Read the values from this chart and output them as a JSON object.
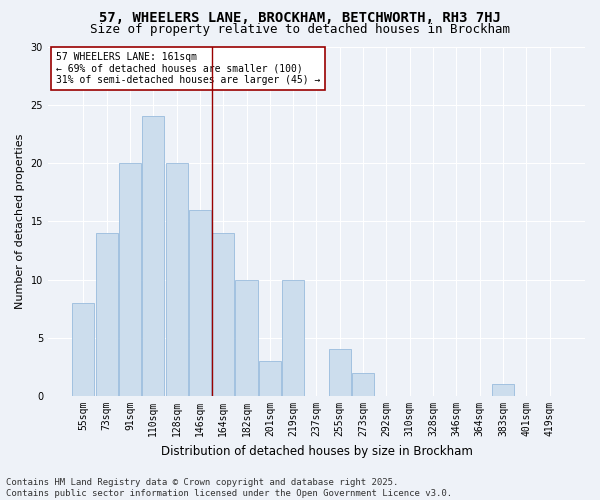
{
  "title": "57, WHEELERS LANE, BROCKHAM, BETCHWORTH, RH3 7HJ",
  "subtitle": "Size of property relative to detached houses in Brockham",
  "xlabel": "Distribution of detached houses by size in Brockham",
  "ylabel": "Number of detached properties",
  "bar_color": "#ccdded",
  "bar_edge_color": "#99bbdd",
  "background_color": "#eef2f8",
  "categories": [
    "55sqm",
    "73sqm",
    "91sqm",
    "110sqm",
    "128sqm",
    "146sqm",
    "164sqm",
    "182sqm",
    "201sqm",
    "219sqm",
    "237sqm",
    "255sqm",
    "273sqm",
    "292sqm",
    "310sqm",
    "328sqm",
    "346sqm",
    "364sqm",
    "383sqm",
    "401sqm",
    "419sqm"
  ],
  "values": [
    8,
    14,
    20,
    24,
    20,
    16,
    14,
    10,
    3,
    10,
    0,
    4,
    2,
    0,
    0,
    0,
    0,
    0,
    1,
    0,
    0
  ],
  "ylim": [
    0,
    30
  ],
  "yticks": [
    0,
    5,
    10,
    15,
    20,
    25,
    30
  ],
  "property_line_x": 5.5,
  "property_line_label": "57 WHEELERS LANE: 161sqm",
  "annotation_line1": "← 69% of detached houses are smaller (100)",
  "annotation_line2": "31% of semi-detached houses are larger (45) →",
  "vline_color": "#990000",
  "footer": "Contains HM Land Registry data © Crown copyright and database right 2025.\nContains public sector information licensed under the Open Government Licence v3.0.",
  "title_fontsize": 10,
  "subtitle_fontsize": 9,
  "ylabel_fontsize": 8,
  "xlabel_fontsize": 8.5,
  "tick_fontsize": 7,
  "annot_fontsize": 7,
  "footer_fontsize": 6.5
}
